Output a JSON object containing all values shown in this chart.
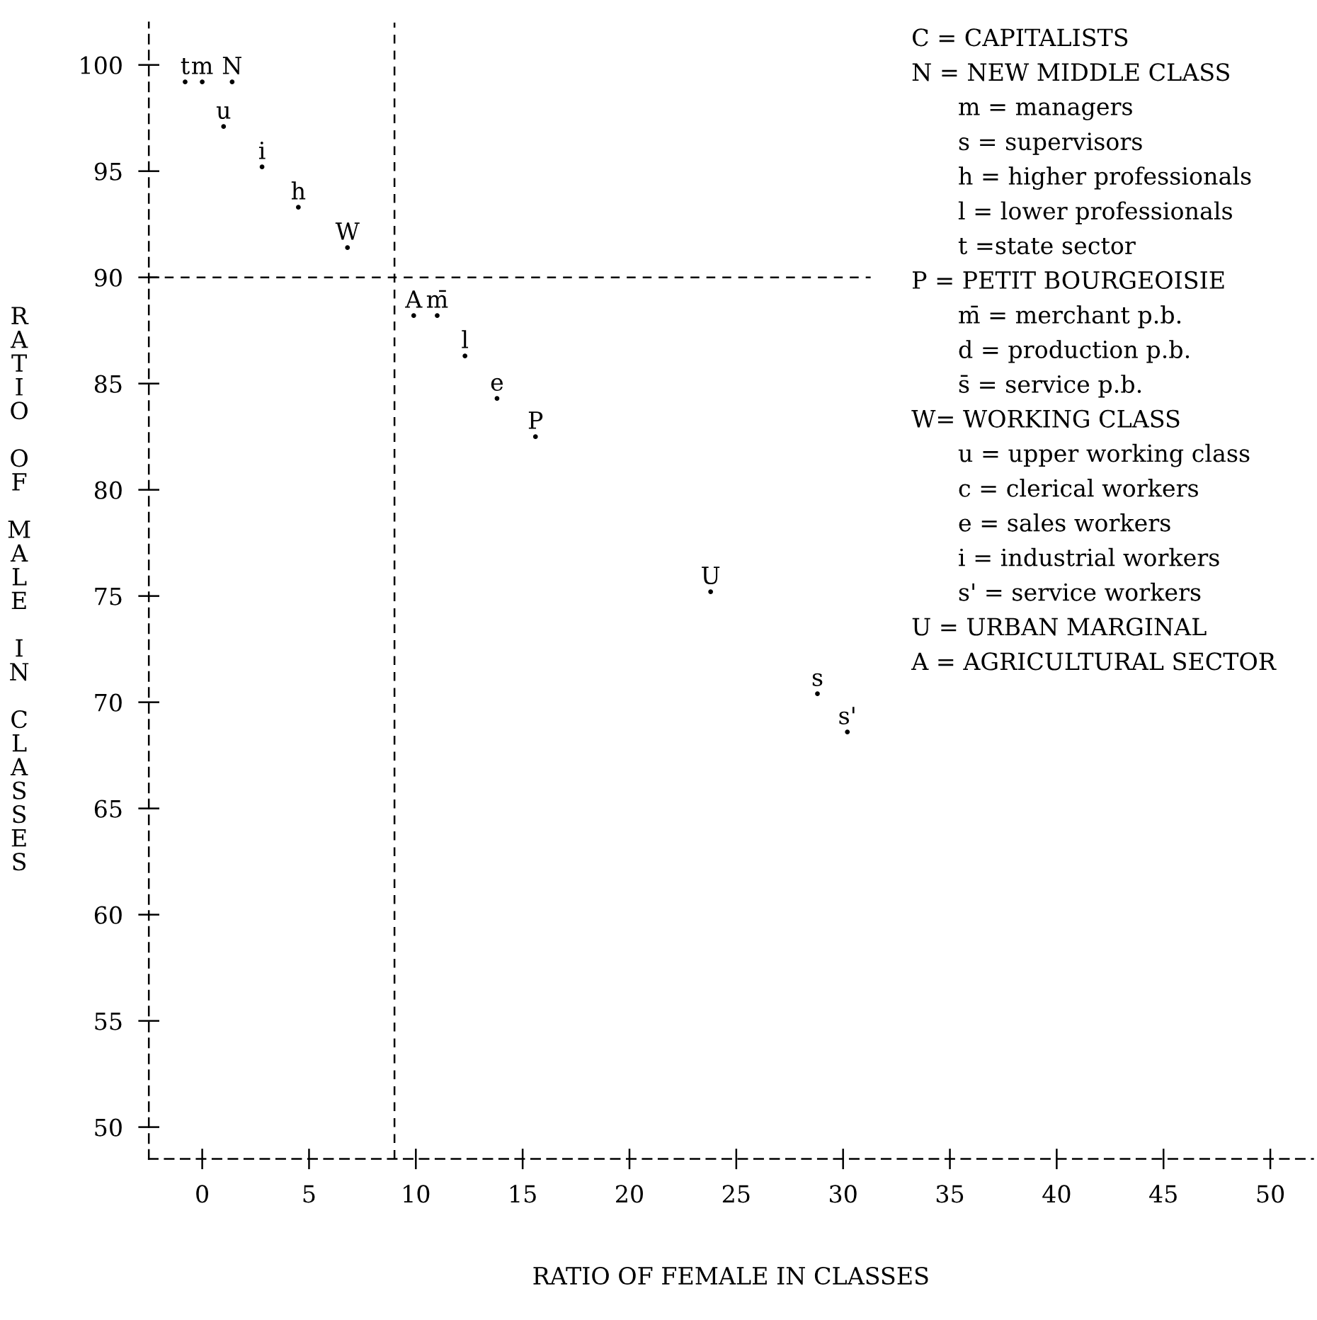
{
  "chart_data": {
    "type": "scatter",
    "xlabel": "RATIO OF FEMALE IN CLASSES",
    "ylabel": "RATIO OF MALE IN CLASSES",
    "xlim": [
      -2.5,
      52
    ],
    "ylim": [
      48.5,
      102
    ],
    "xticks": [
      0,
      5,
      10,
      15,
      20,
      25,
      30,
      35,
      40,
      45,
      50
    ],
    "yticks": [
      50,
      55,
      60,
      65,
      70,
      75,
      80,
      85,
      90,
      95,
      100
    ],
    "grid": false,
    "marker": "circle",
    "series": [
      {
        "color": "#000000",
        "x": [
          -0.8,
          0.0,
          1.4,
          1.0,
          2.8,
          4.5,
          6.8,
          9.9,
          11.0,
          12.3,
          13.8,
          15.6,
          23.8,
          28.8,
          30.2
        ],
        "values": [
          99.2,
          99.2,
          99.2,
          97.1,
          95.2,
          93.3,
          91.4,
          88.2,
          88.2,
          86.3,
          84.3,
          82.5,
          75.2,
          70.4,
          68.6
        ],
        "value_labels": [
          "t",
          "m",
          "N",
          "u",
          "i",
          "h",
          "W",
          "A",
          "m̄",
          "l",
          "e",
          "P",
          "U",
          "s",
          "s'"
        ]
      }
    ],
    "ref_lines": [
      {
        "axis": "y",
        "value": 90,
        "label": null,
        "line_style": "dashed",
        "color": "#000000"
      },
      {
        "axis": "x",
        "value": 9,
        "label": null,
        "line_style": "dashed",
        "color": "#000000"
      }
    ],
    "annotations": [
      "C = CAPITALISTS",
      "N = NEW MIDDLE CLASS",
      "m = managers",
      "s = supervisors",
      "h = higher professionals",
      "l = lower professionals",
      "t =state sector",
      "P = PETIT BOURGEOISIE",
      "m̄ = merchant p.b.",
      "d = production p.b.",
      "s̄ = service p.b.",
      "W= WORKING CLASS",
      "u = upper working class",
      "c = clerical workers",
      "e = sales workers",
      "i = industrial workers",
      "s' = service workers",
      "U = URBAN MARGINAL",
      "A = AGRICULTURAL SECTOR"
    ]
  }
}
